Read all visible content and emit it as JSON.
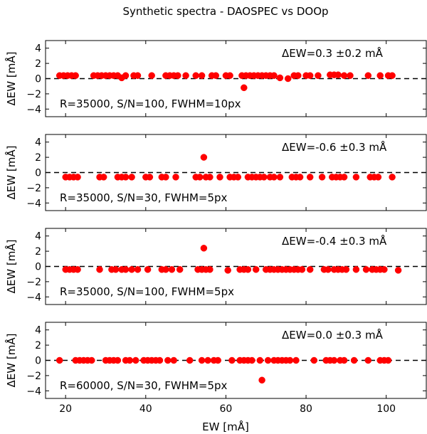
{
  "figure_title": "Synthetic spectra - DAOSPEC vs DOOp",
  "colors": {
    "points": "#ff0000",
    "frame": "#000000",
    "zero_line": "#000000"
  },
  "chart_data": {
    "type": "scatter",
    "title": "Synthetic spectra - DAOSPEC vs DOOp",
    "xlabel": "EW [mÅ]",
    "xlim": [
      15,
      110
    ],
    "xticks": [
      20,
      40,
      60,
      80,
      100
    ],
    "panels": [
      {
        "ylabel": "ΔEW [mÅ]",
        "ylim": [
          -5,
          5
        ],
        "yticks": [
          4,
          2,
          0,
          -2,
          -4
        ],
        "stat_label": "ΔEW=0.3 ±0.2 mÅ",
        "config_label": "R=35000, S/N=100, FWHM=10px",
        "points": [
          {
            "x": 18.5,
            "y": 0.4
          },
          {
            "x": 19.5,
            "y": 0.4
          },
          {
            "x": 20.5,
            "y": 0.4
          },
          {
            "x": 21.5,
            "y": 0.4
          },
          {
            "x": 22.5,
            "y": 0.4
          },
          {
            "x": 27,
            "y": 0.4
          },
          {
            "x": 28,
            "y": 0.4
          },
          {
            "x": 29,
            "y": 0.4
          },
          {
            "x": 30,
            "y": 0.4
          },
          {
            "x": 31,
            "y": 0.4
          },
          {
            "x": 32,
            "y": 0.4
          },
          {
            "x": 33,
            "y": 0.4
          },
          {
            "x": 34,
            "y": 0.1
          },
          {
            "x": 35,
            "y": 0.4
          },
          {
            "x": 37,
            "y": 0.4
          },
          {
            "x": 38,
            "y": 0.4
          },
          {
            "x": 41.5,
            "y": 0.4
          },
          {
            "x": 45,
            "y": 0.4
          },
          {
            "x": 46,
            "y": 0.4
          },
          {
            "x": 47,
            "y": 0.4
          },
          {
            "x": 48,
            "y": 0.4
          },
          {
            "x": 50,
            "y": 0.4
          },
          {
            "x": 52.5,
            "y": 0.4
          },
          {
            "x": 54,
            "y": 0.4
          },
          {
            "x": 56.5,
            "y": 0.4
          },
          {
            "x": 57.5,
            "y": 0.4
          },
          {
            "x": 60,
            "y": 0.4
          },
          {
            "x": 61,
            "y": 0.4
          },
          {
            "x": 64,
            "y": 0.4
          },
          {
            "x": 64.5,
            "y": -1.2
          },
          {
            "x": 65,
            "y": 0.4
          },
          {
            "x": 66,
            "y": 0.4
          },
          {
            "x": 67,
            "y": 0.4
          },
          {
            "x": 68,
            "y": 0.4
          },
          {
            "x": 69,
            "y": 0.4
          },
          {
            "x": 70,
            "y": 0.4
          },
          {
            "x": 71,
            "y": 0.4
          },
          {
            "x": 72,
            "y": 0.4
          },
          {
            "x": 73.5,
            "y": 0.1
          },
          {
            "x": 75.5,
            "y": 0.0
          },
          {
            "x": 77,
            "y": 0.4
          },
          {
            "x": 78,
            "y": 0.4
          },
          {
            "x": 80,
            "y": 0.4
          },
          {
            "x": 81,
            "y": 0.4
          },
          {
            "x": 83,
            "y": 0.4
          },
          {
            "x": 86,
            "y": 0.5
          },
          {
            "x": 87,
            "y": 0.5
          },
          {
            "x": 88,
            "y": 0.5
          },
          {
            "x": 89.5,
            "y": 0.4
          },
          {
            "x": 91,
            "y": 0.4
          },
          {
            "x": 95.5,
            "y": 0.4
          },
          {
            "x": 98.5,
            "y": 0.4
          },
          {
            "x": 100.5,
            "y": 0.4
          },
          {
            "x": 101.5,
            "y": 0.4
          }
        ]
      },
      {
        "ylabel": "ΔEW [mÅ]",
        "ylim": [
          -5,
          5
        ],
        "yticks": [
          4,
          2,
          0,
          -2,
          -4
        ],
        "stat_label": "ΔEW=-0.6 ±0.3 mÅ",
        "config_label": "R=35000, S/N=30, FWHM=5px",
        "points": [
          {
            "x": 20,
            "y": -0.6
          },
          {
            "x": 21,
            "y": -0.6
          },
          {
            "x": 22,
            "y": -0.6
          },
          {
            "x": 23,
            "y": -0.6
          },
          {
            "x": 28.5,
            "y": -0.6
          },
          {
            "x": 29.5,
            "y": -0.6
          },
          {
            "x": 33,
            "y": -0.6
          },
          {
            "x": 34,
            "y": -0.6
          },
          {
            "x": 35,
            "y": -0.6
          },
          {
            "x": 36.5,
            "y": -0.6
          },
          {
            "x": 40,
            "y": -0.6
          },
          {
            "x": 41,
            "y": -0.6
          },
          {
            "x": 44,
            "y": -0.6
          },
          {
            "x": 45,
            "y": -0.6
          },
          {
            "x": 47.5,
            "y": -0.6
          },
          {
            "x": 52.5,
            "y": -0.6
          },
          {
            "x": 53.5,
            "y": -0.6
          },
          {
            "x": 54.5,
            "y": 2.0
          },
          {
            "x": 55,
            "y": -0.6
          },
          {
            "x": 56,
            "y": -0.6
          },
          {
            "x": 58.5,
            "y": -0.6
          },
          {
            "x": 61,
            "y": -0.6
          },
          {
            "x": 62,
            "y": -0.6
          },
          {
            "x": 63,
            "y": -0.6
          },
          {
            "x": 65.5,
            "y": -0.6
          },
          {
            "x": 66.5,
            "y": -0.6
          },
          {
            "x": 67.5,
            "y": -0.6
          },
          {
            "x": 68.5,
            "y": -0.6
          },
          {
            "x": 69.5,
            "y": -0.6
          },
          {
            "x": 71,
            "y": -0.6
          },
          {
            "x": 72,
            "y": -0.6
          },
          {
            "x": 73.5,
            "y": -0.6
          },
          {
            "x": 76.5,
            "y": -0.6
          },
          {
            "x": 77.5,
            "y": -0.6
          },
          {
            "x": 78.5,
            "y": -0.6
          },
          {
            "x": 81,
            "y": -0.6
          },
          {
            "x": 84,
            "y": -0.6
          },
          {
            "x": 86.5,
            "y": -0.6
          },
          {
            "x": 87.5,
            "y": -0.6
          },
          {
            "x": 88.5,
            "y": -0.6
          },
          {
            "x": 89.5,
            "y": -0.6
          },
          {
            "x": 92.5,
            "y": -0.6
          },
          {
            "x": 96,
            "y": -0.6
          },
          {
            "x": 97,
            "y": -0.6
          },
          {
            "x": 98,
            "y": -0.6
          },
          {
            "x": 101.5,
            "y": -0.6
          }
        ]
      },
      {
        "ylabel": "ΔEW [mÅ]",
        "ylim": [
          -5,
          5
        ],
        "yticks": [
          4,
          2,
          0,
          -2,
          -4
        ],
        "stat_label": "ΔEW=-0.4 ±0.3 mÅ",
        "config_label": "R=35000, S/N=100, FWHM=5px",
        "points": [
          {
            "x": 20,
            "y": -0.4
          },
          {
            "x": 21,
            "y": -0.4
          },
          {
            "x": 22,
            "y": -0.4
          },
          {
            "x": 23,
            "y": -0.4
          },
          {
            "x": 28.5,
            "y": -0.4
          },
          {
            "x": 31.5,
            "y": -0.4
          },
          {
            "x": 32.5,
            "y": -0.4
          },
          {
            "x": 34,
            "y": -0.4
          },
          {
            "x": 35,
            "y": -0.4
          },
          {
            "x": 36.5,
            "y": -0.4
          },
          {
            "x": 38,
            "y": -0.4
          },
          {
            "x": 40.5,
            "y": -0.4
          },
          {
            "x": 44,
            "y": -0.4
          },
          {
            "x": 45,
            "y": -0.4
          },
          {
            "x": 46.5,
            "y": -0.4
          },
          {
            "x": 48.5,
            "y": -0.4
          },
          {
            "x": 53,
            "y": -0.4
          },
          {
            "x": 54,
            "y": -0.4
          },
          {
            "x": 54.5,
            "y": 2.4
          },
          {
            "x": 55,
            "y": -0.4
          },
          {
            "x": 56,
            "y": -0.4
          },
          {
            "x": 60.5,
            "y": -0.5
          },
          {
            "x": 63.5,
            "y": -0.4
          },
          {
            "x": 64.5,
            "y": -0.4
          },
          {
            "x": 65.5,
            "y": -0.4
          },
          {
            "x": 67.5,
            "y": -0.4
          },
          {
            "x": 70,
            "y": -0.4
          },
          {
            "x": 71,
            "y": -0.4
          },
          {
            "x": 72,
            "y": -0.4
          },
          {
            "x": 73,
            "y": -0.4
          },
          {
            "x": 74,
            "y": -0.4
          },
          {
            "x": 75,
            "y": -0.4
          },
          {
            "x": 76,
            "y": -0.4
          },
          {
            "x": 77,
            "y": -0.4
          },
          {
            "x": 78,
            "y": -0.4
          },
          {
            "x": 79,
            "y": -0.4
          },
          {
            "x": 81,
            "y": -0.4
          },
          {
            "x": 84.5,
            "y": -0.4
          },
          {
            "x": 85.5,
            "y": -0.4
          },
          {
            "x": 87,
            "y": -0.4
          },
          {
            "x": 88,
            "y": -0.4
          },
          {
            "x": 89,
            "y": -0.4
          },
          {
            "x": 90,
            "y": -0.4
          },
          {
            "x": 92.5,
            "y": -0.4
          },
          {
            "x": 95,
            "y": -0.4
          },
          {
            "x": 96.5,
            "y": -0.4
          },
          {
            "x": 97.5,
            "y": -0.4
          },
          {
            "x": 98.5,
            "y": -0.4
          },
          {
            "x": 99.5,
            "y": -0.4
          },
          {
            "x": 103,
            "y": -0.5
          }
        ]
      },
      {
        "ylabel": "ΔEW [mÅ]",
        "ylim": [
          -5,
          5
        ],
        "yticks": [
          4,
          2,
          0,
          -2,
          -4
        ],
        "stat_label": "ΔEW=0.0 ±0.3 mÅ",
        "config_label": "R=60000, S/N=30, FWHM=5px",
        "points": [
          {
            "x": 18.5,
            "y": 0.0
          },
          {
            "x": 22.5,
            "y": 0.0
          },
          {
            "x": 23.5,
            "y": 0.0
          },
          {
            "x": 24.5,
            "y": 0.0
          },
          {
            "x": 25.5,
            "y": 0.0
          },
          {
            "x": 26.5,
            "y": 0.0
          },
          {
            "x": 30,
            "y": 0.0
          },
          {
            "x": 31,
            "y": 0.0
          },
          {
            "x": 32,
            "y": 0.0
          },
          {
            "x": 33,
            "y": 0.0
          },
          {
            "x": 35,
            "y": 0.0
          },
          {
            "x": 36,
            "y": 0.0
          },
          {
            "x": 37.5,
            "y": 0.0
          },
          {
            "x": 39.5,
            "y": 0.0
          },
          {
            "x": 40.5,
            "y": 0.0
          },
          {
            "x": 41.5,
            "y": 0.0
          },
          {
            "x": 42.5,
            "y": 0.0
          },
          {
            "x": 43.5,
            "y": 0.0
          },
          {
            "x": 45.5,
            "y": 0.0
          },
          {
            "x": 47,
            "y": 0.0
          },
          {
            "x": 51,
            "y": 0.0
          },
          {
            "x": 54,
            "y": 0.0
          },
          {
            "x": 55.5,
            "y": 0.0
          },
          {
            "x": 57,
            "y": 0.0
          },
          {
            "x": 58,
            "y": 0.0
          },
          {
            "x": 61.5,
            "y": 0.0
          },
          {
            "x": 63.5,
            "y": 0.0
          },
          {
            "x": 64.5,
            "y": 0.0
          },
          {
            "x": 65.5,
            "y": 0.0
          },
          {
            "x": 66.5,
            "y": 0.0
          },
          {
            "x": 68.5,
            "y": 0.0
          },
          {
            "x": 69,
            "y": -2.6
          },
          {
            "x": 70.5,
            "y": 0.0
          },
          {
            "x": 72,
            "y": 0.0
          },
          {
            "x": 73,
            "y": 0.0
          },
          {
            "x": 74,
            "y": 0.0
          },
          {
            "x": 75,
            "y": 0.0
          },
          {
            "x": 76,
            "y": 0.0
          },
          {
            "x": 77.5,
            "y": 0.0
          },
          {
            "x": 82,
            "y": 0.0
          },
          {
            "x": 85,
            "y": 0.0
          },
          {
            "x": 86,
            "y": 0.0
          },
          {
            "x": 87,
            "y": 0.0
          },
          {
            "x": 88.5,
            "y": 0.0
          },
          {
            "x": 89.5,
            "y": 0.0
          },
          {
            "x": 92,
            "y": 0.0
          },
          {
            "x": 95.5,
            "y": 0.0
          },
          {
            "x": 98.5,
            "y": 0.0
          },
          {
            "x": 99.5,
            "y": 0.0
          },
          {
            "x": 100.5,
            "y": 0.0
          }
        ]
      }
    ]
  }
}
